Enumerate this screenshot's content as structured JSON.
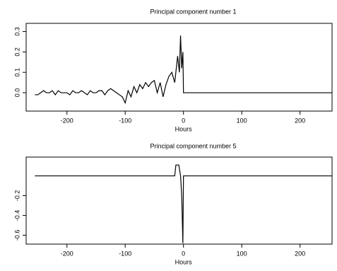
{
  "chart_data": [
    {
      "type": "line",
      "title": "Principal component number  1",
      "x_label": "Hours",
      "color": "#000000",
      "x": [
        -255,
        -250,
        -245,
        -240,
        -235,
        -230,
        -225,
        -220,
        -215,
        -210,
        -205,
        -200,
        -195,
        -190,
        -185,
        -180,
        -175,
        -170,
        -165,
        -160,
        -155,
        -150,
        -145,
        -140,
        -135,
        -130,
        -125,
        -120,
        -115,
        -110,
        -105,
        -100,
        -95,
        -90,
        -85,
        -80,
        -75,
        -70,
        -65,
        -60,
        -55,
        -50,
        -45,
        -40,
        -35,
        -30,
        -25,
        -20,
        -15,
        -10,
        -7,
        -5,
        -3,
        -1,
        0,
        255
      ],
      "values": [
        -0.01,
        -0.01,
        0.0,
        0.01,
        0.0,
        0.0,
        0.01,
        -0.01,
        0.01,
        0.0,
        0.0,
        0.0,
        -0.01,
        0.01,
        0.0,
        0.0,
        0.01,
        0.0,
        -0.01,
        0.01,
        0.0,
        0.0,
        0.01,
        0.01,
        -0.01,
        0.01,
        0.02,
        0.01,
        0.0,
        -0.01,
        -0.02,
        -0.05,
        0.01,
        -0.02,
        0.03,
        0.0,
        0.04,
        0.02,
        0.05,
        0.03,
        0.05,
        0.06,
        0.0,
        0.05,
        -0.02,
        0.04,
        0.08,
        0.1,
        0.05,
        0.18,
        0.1,
        0.28,
        0.12,
        0.2,
        0.0,
        0.0
      ],
      "xlim": [
        -270,
        255
      ],
      "xticks": [
        -200,
        -100,
        0,
        100,
        200
      ],
      "ylim": [
        -0.09,
        0.34
      ],
      "yticks": [
        {
          "value": 0,
          "label": "0.0"
        },
        0.1,
        0.2,
        0.3
      ]
    },
    {
      "type": "line",
      "title": "Principal component number  5",
      "x_label": "Hours",
      "color": "#000000",
      "x": [
        -255,
        -15,
        -13,
        -8,
        -5,
        -3,
        -1,
        0,
        255
      ],
      "values": [
        0,
        0,
        0.11,
        0.11,
        0,
        -0.2,
        -0.68,
        0,
        0
      ],
      "xlim": [
        -270,
        255
      ],
      "xticks": [
        -200,
        -100,
        0,
        100,
        200
      ],
      "ylim": [
        -0.69,
        0.19
      ],
      "yticks": [
        -0.6,
        -0.4,
        -0.2
      ]
    }
  ]
}
